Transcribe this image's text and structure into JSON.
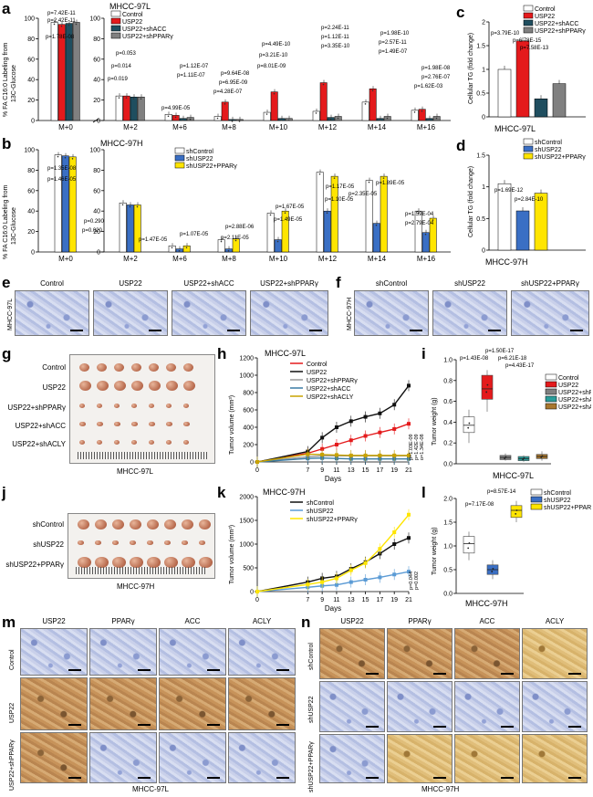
{
  "panel_letters": [
    "a",
    "b",
    "c",
    "d",
    "e",
    "f",
    "g",
    "h",
    "i",
    "j",
    "k",
    "l",
    "m",
    "n"
  ],
  "colors": {
    "control": "#ffffff",
    "usp22": "#e41a1c",
    "shacc": "#1f4e5f",
    "shpparg": "#808080",
    "shctrl": "#ffffff",
    "shusp22": "#3a6fc4",
    "rescue": "#ffe500",
    "acly": "#8b5a2b"
  },
  "panel_a": {
    "title": "MHCC-97L",
    "ylabel_1": "% FA C16:0 Labeling from",
    "ylabel_2": "13C-Glucose",
    "legend": [
      "Control",
      "USP22",
      "USP22+shACC",
      "USP22+shPPARγ"
    ],
    "categories": [
      "M+0",
      "M+2",
      "M+6",
      "M+8",
      "M+10",
      "M+12",
      "M+14",
      "M+16"
    ],
    "pvalues": [
      "p=7.42E-11",
      "p=2.42E-11",
      "p=1.78E-08",
      "p=0.053",
      "p=0.014",
      "p=0.019",
      "p=1.12E-07",
      "p=1.11E-07",
      "p=4.99E-05",
      "p=9.64E-08",
      "p=6.95E-09",
      "p=4.28E-07",
      "p=4.49E-10",
      "p=3.21E-10",
      "p=8.01E-09",
      "p=2.24E-11",
      "p=1.12E-11",
      "p=3.35E-10",
      "p=1.98E-10",
      "p=2.57E-11",
      "p=1.49E-07",
      "p=1.98E-08",
      "p=2.76E-07",
      "p=1.62E-03"
    ]
  },
  "panel_b": {
    "title": "MHCC-97H",
    "legend": [
      "shControl",
      "shUSP22",
      "shUSP22+PPARγ"
    ],
    "categories": [
      "M+0",
      "M+2",
      "M+6",
      "M+8",
      "M+10",
      "M+12",
      "M+14",
      "M+16"
    ],
    "pvalues": [
      "p=1.35E-08",
      "p=1.46E-05",
      "p=0.290",
      "p=0.020",
      "p=1.47E-05",
      "p=1.07E-05",
      "p=2.88E-06",
      "p=2.11E-05",
      "p=1.67E-05",
      "p=1.49E-05",
      "p=1.17E-05",
      "p=1.10E-05",
      "p=2.35E-05",
      "p=1.89E-05",
      "p=1.59E-04",
      "p=2.79E-04"
    ]
  },
  "panel_c": {
    "ylabel": "Cellular TG (fold change)",
    "xlabel": "MHCC-97L",
    "legend": [
      "Control",
      "USP22",
      "USP22+shACC",
      "USP22+shPPARγ"
    ],
    "pvalues": [
      "p=3.79E-10",
      "p=6.78E-15",
      "p=7.58E-13"
    ]
  },
  "panel_d": {
    "ylabel": "Cellular TG (fold change)",
    "xlabel": "MHCC-97H",
    "legend": [
      "shControl",
      "shUSP22",
      "shUSP22+PPARγ"
    ],
    "pvalues": [
      "p=1.69E-12",
      "p=2.84E-10"
    ]
  },
  "panel_e": {
    "side": "MHCC-97L",
    "cols": [
      "Control",
      "USP22",
      "USP22+shACC",
      "USP22+shPPARγ"
    ]
  },
  "panel_f": {
    "side": "MHCC-97H",
    "cols": [
      "shControl",
      "shUSP22",
      "shUSP22+PPARγ"
    ]
  },
  "panel_g": {
    "rows": [
      "Control",
      "USP22",
      "USP22+shPPARγ",
      "USP22+shACC",
      "USP22+shACLY"
    ],
    "caption": "MHCC-97L"
  },
  "panel_h": {
    "title": "MHCC-97L",
    "ylabel": "Tumor volume (mm³)",
    "xlabel": "Days",
    "legend": [
      "Control",
      "USP22",
      "USP22+shPPARγ",
      "USP22+shACC",
      "USP22+shACLY"
    ],
    "pvalues": [
      "p=1.03E-09",
      "p=1.42E-09",
      "p=1.34E-08"
    ]
  },
  "panel_i": {
    "ylabel": "Tumor weight (g)",
    "xlabel": "MHCC-97L",
    "legend": [
      "Control",
      "USP22",
      "USP22+shPPARγ",
      "USP22+shACC",
      "USP22+shACLY"
    ],
    "pvalues": [
      "p=1.50E-17",
      "p=1.43E-08",
      "p=6.21E-18",
      "p=4.43E-17"
    ]
  },
  "panel_j": {
    "rows": [
      "shControl",
      "shUSP22",
      "shUSP22+PPARγ"
    ],
    "caption": "MHCC-97H"
  },
  "panel_k": {
    "title": "MHCC-97H",
    "ylabel": "Tumor volume (mm³)",
    "xlabel": "Days",
    "legend": [
      "shControl",
      "shUSP22",
      "shUSP22+PPARγ"
    ],
    "pvalues": [
      "p=0.044",
      "p=0.002"
    ]
  },
  "panel_l": {
    "ylabel": "Tumor weight (g)",
    "xlabel": "MHCC-97H",
    "legend": [
      "shControl",
      "shUSP22",
      "shUSP22+PPARγ"
    ],
    "pvalues": [
      "p=7.17E-08",
      "p=8.57E-14"
    ]
  },
  "panel_m": {
    "cols": [
      "USP22",
      "PPARγ",
      "ACC",
      "ACLY"
    ],
    "rows": [
      "Control",
      "USP22",
      "USP22+shPPARγ"
    ],
    "caption": "MHCC-97L"
  },
  "panel_n": {
    "cols": [
      "USP22",
      "PPARγ",
      "ACC",
      "ACLY"
    ],
    "rows": [
      "shControl",
      "shUSP22",
      "shUSP22+PPARγ"
    ],
    "caption": "MHCC-97H"
  },
  "chart_data": [
    {
      "type": "bar",
      "id": "a",
      "categories": [
        "M+0",
        "M+2",
        "M+6",
        "M+8",
        "M+10",
        "M+12",
        "M+14",
        "M+16"
      ],
      "ylim": [
        0,
        100
      ],
      "yticks": [
        0,
        20,
        40,
        60,
        80,
        100
      ],
      "series": [
        {
          "name": "Control",
          "values": [
            96,
            24,
            6,
            4,
            8,
            9,
            18,
            10
          ]
        },
        {
          "name": "USP22",
          "values": [
            94,
            24,
            5,
            18,
            28,
            37,
            31,
            11
          ]
        },
        {
          "name": "USP22+shACC",
          "values": [
            95,
            23,
            2,
            1,
            2,
            3,
            2,
            2
          ]
        },
        {
          "name": "USP22+shPPARγ",
          "values": [
            96,
            23,
            3,
            1,
            2,
            4,
            4,
            4
          ]
        }
      ]
    },
    {
      "type": "bar",
      "id": "b",
      "categories": [
        "M+0",
        "M+2",
        "M+6",
        "M+8",
        "M+10",
        "M+12",
        "M+14",
        "M+16"
      ],
      "ylim": [
        0,
        100
      ],
      "yticks": [
        0,
        20,
        40,
        60,
        80,
        100
      ],
      "series": [
        {
          "name": "shControl",
          "values": [
            95,
            48,
            6,
            12,
            38,
            78,
            70,
            40
          ]
        },
        {
          "name": "shUSP22",
          "values": [
            94,
            46,
            3,
            3,
            12,
            40,
            28,
            19
          ]
        },
        {
          "name": "shUSP22+PPARγ",
          "values": [
            93,
            46,
            6,
            13,
            40,
            74,
            74,
            33
          ]
        }
      ]
    },
    {
      "type": "bar",
      "id": "c",
      "categories": [
        "Control",
        "USP22",
        "USP22+shACC",
        "USP22+shPPARγ"
      ],
      "values": [
        1.0,
        1.6,
        0.38,
        0.7
      ],
      "ylim": [
        0,
        2.0
      ],
      "yticks": [
        0,
        0.5,
        1.0,
        1.5,
        2.0
      ]
    },
    {
      "type": "bar",
      "id": "d",
      "categories": [
        "shControl",
        "shUSP22",
        "shUSP22+PPARγ"
      ],
      "values": [
        1.05,
        0.62,
        0.9
      ],
      "ylim": [
        0,
        1.5
      ],
      "yticks": [
        0,
        0.5,
        1.0,
        1.5
      ]
    },
    {
      "type": "line",
      "id": "h",
      "x": [
        0,
        7,
        9,
        11,
        13,
        15,
        17,
        19,
        21
      ],
      "ylim": [
        0,
        1200
      ],
      "yticks": [
        0,
        200,
        400,
        600,
        800,
        1000,
        1200
      ],
      "series": [
        {
          "name": "Control",
          "values": [
            0,
            100,
            150,
            200,
            250,
            300,
            340,
            380,
            440
          ]
        },
        {
          "name": "USP22",
          "values": [
            0,
            120,
            280,
            400,
            470,
            520,
            560,
            660,
            880
          ]
        },
        {
          "name": "USP22+shPPARγ",
          "values": [
            0,
            60,
            70,
            70,
            70,
            70,
            70,
            70,
            70
          ]
        },
        {
          "name": "USP22+shACC",
          "values": [
            0,
            40,
            45,
            40,
            35,
            35,
            35,
            35,
            35
          ]
        },
        {
          "name": "USP22+shACLY",
          "values": [
            0,
            90,
            85,
            80,
            75,
            75,
            75,
            75,
            75
          ]
        }
      ]
    },
    {
      "type": "box",
      "id": "i",
      "categories": [
        "Control",
        "USP22",
        "USP22+shPPARγ",
        "USP22+shACC",
        "USP22+shACLY"
      ],
      "ylim": [
        0,
        1.0
      ],
      "yticks": [
        0,
        0.2,
        0.4,
        0.6,
        0.8,
        1.0
      ],
      "boxes": [
        [
          0.2,
          0.3,
          0.37,
          0.45,
          0.52
        ],
        [
          0.5,
          0.62,
          0.72,
          0.85,
          0.9
        ],
        [
          0.03,
          0.04,
          0.06,
          0.08,
          0.1
        ],
        [
          0.02,
          0.03,
          0.05,
          0.07,
          0.08
        ],
        [
          0.03,
          0.05,
          0.07,
          0.09,
          0.12
        ]
      ]
    },
    {
      "type": "line",
      "id": "k",
      "x": [
        0,
        7,
        9,
        11,
        13,
        15,
        17,
        19,
        21
      ],
      "ylim": [
        0,
        2000
      ],
      "yticks": [
        0,
        500,
        1000,
        1500,
        2000
      ],
      "series": [
        {
          "name": "shControl",
          "values": [
            0,
            200,
            280,
            320,
            480,
            620,
            800,
            1000,
            1130
          ]
        },
        {
          "name": "shUSP22",
          "values": [
            0,
            90,
            120,
            140,
            200,
            250,
            300,
            360,
            420
          ]
        },
        {
          "name": "shUSP22+PPARγ",
          "values": [
            0,
            150,
            200,
            280,
            450,
            600,
            900,
            1250,
            1620
          ]
        }
      ]
    },
    {
      "type": "box",
      "id": "l",
      "categories": [
        "shControl",
        "shUSP22",
        "shUSP22+PPARγ"
      ],
      "ylim": [
        0,
        2.0
      ],
      "yticks": [
        0,
        0.5,
        1.0,
        1.5,
        2.0
      ],
      "boxes": [
        [
          0.7,
          0.85,
          1.05,
          1.2,
          1.3
        ],
        [
          0.3,
          0.4,
          0.5,
          0.6,
          0.7
        ],
        [
          1.5,
          1.6,
          1.75,
          1.85,
          1.95
        ]
      ]
    }
  ]
}
